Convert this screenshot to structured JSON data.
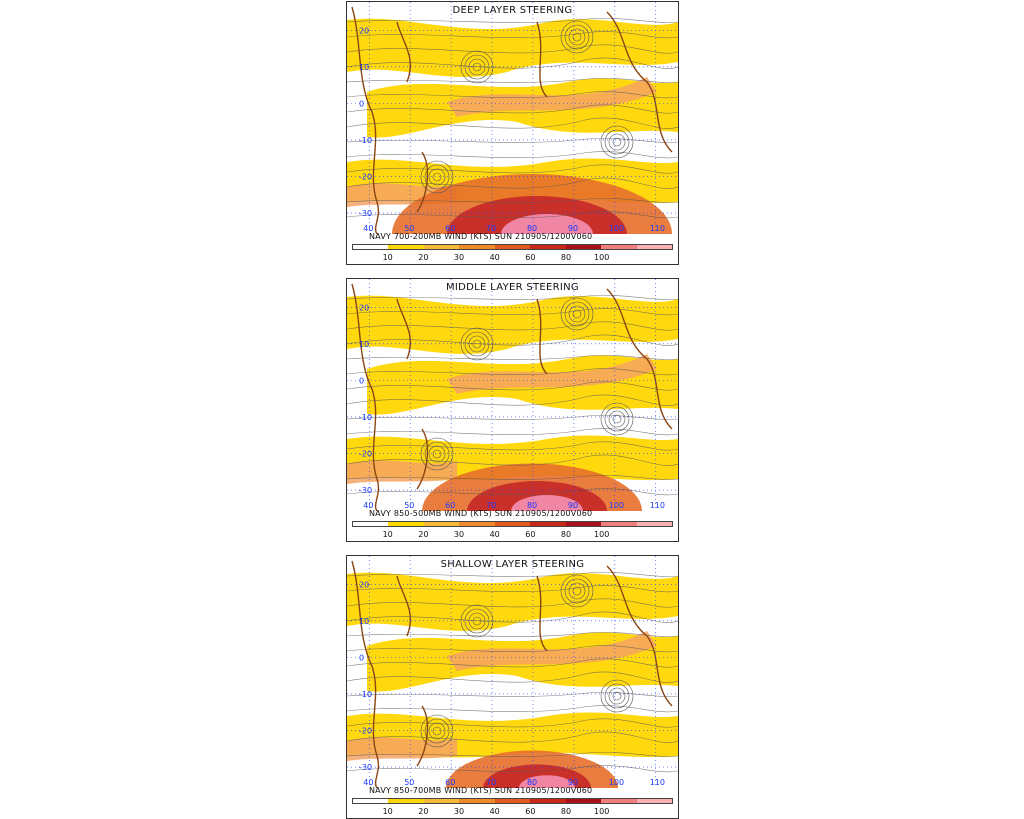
{
  "panels": [
    {
      "title": "DEEP LAYER STEERING",
      "caption": "NAVY 700-200MB WIND (KTS) SUN 210905/1200V060",
      "top": 0,
      "hot_core": 1.0
    },
    {
      "title": "MIDDLE LAYER STEERING",
      "caption": "NAVY 850-500MB WIND (KTS) SUN 210905/1200V060",
      "top": 1,
      "hot_core": 0.75
    },
    {
      "title": "SHALLOW LAYER STEERING",
      "caption": "NAVY 850-700MB WIND (KTS) SUN 210905/1200V060",
      "top": 2,
      "hot_core": 0.55
    }
  ],
  "lat_labels": [
    "20",
    "10",
    "0",
    "-10",
    "-20",
    "-30"
  ],
  "lon_labels": [
    "40",
    "50",
    "60",
    "70",
    "80",
    "90",
    "100",
    "110"
  ],
  "colorbar": {
    "labels": [
      "10",
      "20",
      "30",
      "40",
      "60",
      "80",
      "100"
    ],
    "colors": [
      "#ffffff",
      "#ffd700",
      "#f7b93a",
      "#ef8a2c",
      "#e05a1e",
      "#c8281a",
      "#a8101a",
      "#f08080",
      "#f8b0b0"
    ]
  },
  "colors": {
    "yellow": "#ffd700",
    "orange": "#f4a261",
    "dark_orange": "#e76f2a",
    "red": "#c62828",
    "pink": "#f48fb1",
    "coast": "#8b4513",
    "stream": "#555555",
    "grid": "#1a3cff"
  }
}
